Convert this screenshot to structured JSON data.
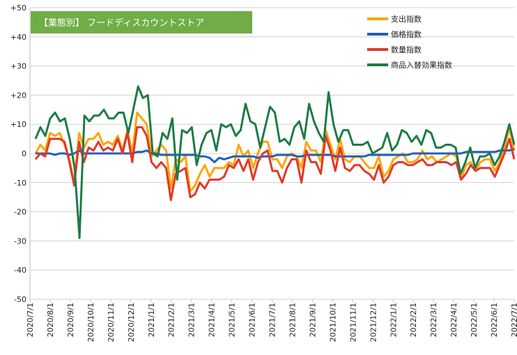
{
  "chart_data": {
    "type": "line",
    "title": "【業態別】 フードディスカウントストア",
    "title_bg": "#70ad47",
    "ylim": [
      -50,
      50
    ],
    "y_ticks": [
      50,
      40,
      30,
      20,
      10,
      0,
      -10,
      -20,
      -30,
      -40,
      -50
    ],
    "y_tick_labels": [
      "+50",
      "+40",
      "+30",
      "+20",
      "+10",
      "0",
      "-10",
      "-20",
      "-30",
      "-40",
      "-50"
    ],
    "x_tick_labels": [
      "2020/7/1",
      "2020/8/1",
      "2020/9/1",
      "2020/10/1",
      "2020/11/1",
      "2020/12/1",
      "2021/1/1",
      "2021/2/1",
      "2021/3/1",
      "2021/4/1",
      "2021/5/1",
      "2021/6/1",
      "2021/7/1",
      "2021/8/1",
      "2021/9/1",
      "2021/10/1",
      "2021/11/1",
      "2021/12/1",
      "2022/1/1",
      "2022/2/1",
      "2022/3/1",
      "2022/4/1",
      "2022/5/1",
      "2022/6/1",
      "2022/7/1"
    ],
    "legend_position": "top-right",
    "grid": "horizontal",
    "series": [
      {
        "name": "支出指数",
        "color": "#ffa500",
        "values": [
          0,
          3,
          1,
          7,
          6,
          7,
          3,
          -2,
          -10,
          7,
          2,
          5,
          5,
          7,
          3,
          4,
          3,
          6,
          1,
          8,
          0,
          14,
          12,
          10,
          -1,
          1,
          3,
          1,
          -12,
          -2,
          -3,
          -1,
          -13,
          -11,
          -7,
          -4,
          -8,
          -5,
          -5,
          -5,
          -3,
          -4,
          3,
          -1,
          1,
          -5,
          0,
          4,
          4,
          -2,
          -2,
          -5,
          -1,
          0,
          -1,
          -5,
          4,
          1,
          1,
          -3,
          8,
          3,
          -2,
          5,
          -2,
          -3,
          -1,
          -1,
          -3,
          -5,
          -5,
          -1,
          -8,
          -6,
          -2,
          -1,
          0,
          -3,
          -3,
          -2,
          1,
          -2,
          -1,
          -3,
          -2,
          -1,
          0,
          -1,
          -9,
          -4,
          -3,
          -6,
          -3,
          -2,
          -2,
          -6,
          -3,
          2,
          9,
          1
        ]
      },
      {
        "name": "価格指数",
        "color": "#1f5fbf",
        "values": [
          0,
          0,
          0,
          0,
          -0.5,
          0,
          0,
          -0.5,
          0,
          1,
          0,
          0,
          0,
          0,
          0,
          0,
          0,
          0,
          0,
          0,
          0,
          0.5,
          0.5,
          1,
          0,
          0,
          -0.5,
          -0.5,
          -0.5,
          -0.5,
          -0.5,
          -0.5,
          -0.5,
          -0.5,
          -1,
          -1,
          -1.5,
          -3,
          -1.5,
          -2,
          -1.5,
          -1,
          -1,
          -1,
          -1,
          -1,
          -1.5,
          -1,
          -1,
          -1,
          -0.5,
          -0.5,
          -0.5,
          -0.5,
          -1,
          -1,
          -0.5,
          -0.5,
          -0.5,
          -0.5,
          -0.5,
          -0.5,
          -1,
          -1,
          -1,
          -1,
          -1,
          -1,
          -1,
          -0.5,
          -0.5,
          -0.5,
          -0.5,
          -0.5,
          -0.5,
          -0.5,
          -0.5,
          -0.5,
          0,
          0,
          0,
          0,
          0,
          0,
          0,
          0,
          0,
          0,
          0,
          0.5,
          0.5,
          0.5,
          0.5,
          0.5,
          0.5,
          0.5,
          1,
          1,
          1,
          1.5
        ]
      },
      {
        "name": "数量指数",
        "color": "#e0392b",
        "values": [
          -2,
          0,
          -1,
          5,
          5,
          5,
          4,
          -3,
          -11,
          4,
          -3,
          2,
          1,
          4,
          1,
          2,
          1,
          5,
          0,
          7,
          -3,
          9,
          9,
          6,
          -3,
          -5,
          -3,
          -5,
          -16,
          -7,
          -6,
          -5,
          -15,
          -14,
          -10,
          -12,
          -9,
          -9,
          -9,
          -8,
          -4,
          -5,
          -2,
          -6,
          -2,
          -9,
          -3,
          0,
          1,
          -6,
          -6,
          -10,
          -5,
          -2,
          -2,
          -10,
          1,
          -3,
          -3,
          -7,
          6,
          1,
          -6,
          2,
          -5,
          -6,
          -4,
          -4,
          -6,
          -7,
          -9,
          -4,
          -10,
          -8,
          -4,
          -3,
          -3,
          -4,
          -4,
          -3,
          -2,
          -4,
          -4,
          -3,
          -3,
          -3,
          -4,
          -3,
          -9,
          -7,
          -4,
          -6,
          -5,
          -5,
          -5,
          -8,
          -4,
          0,
          5,
          -2
        ]
      },
      {
        "name": "商品入替効果指数",
        "color": "#1e7b45",
        "values": [
          5,
          9,
          6,
          12,
          14,
          11,
          12,
          5,
          -5,
          -29,
          13,
          11,
          13,
          13,
          15,
          12,
          12,
          14,
          14,
          7,
          15,
          23,
          19,
          20,
          0,
          -1,
          7,
          5,
          12,
          -9,
          8,
          7,
          9,
          -4,
          3,
          7,
          8,
          1,
          10,
          9,
          10,
          6,
          8,
          17,
          11,
          10,
          2,
          9,
          16,
          14,
          4,
          5,
          3,
          9,
          11,
          5,
          17,
          11,
          7,
          4,
          21,
          10,
          4,
          8,
          8,
          3,
          3,
          3,
          4,
          0,
          1,
          2,
          7,
          1,
          3,
          8,
          7,
          4,
          6,
          3,
          8,
          7,
          2,
          2,
          3,
          3,
          2,
          -7,
          -3,
          2,
          -5,
          -1,
          -1,
          0,
          -4,
          -1,
          4,
          10,
          3
        ]
      }
    ]
  }
}
